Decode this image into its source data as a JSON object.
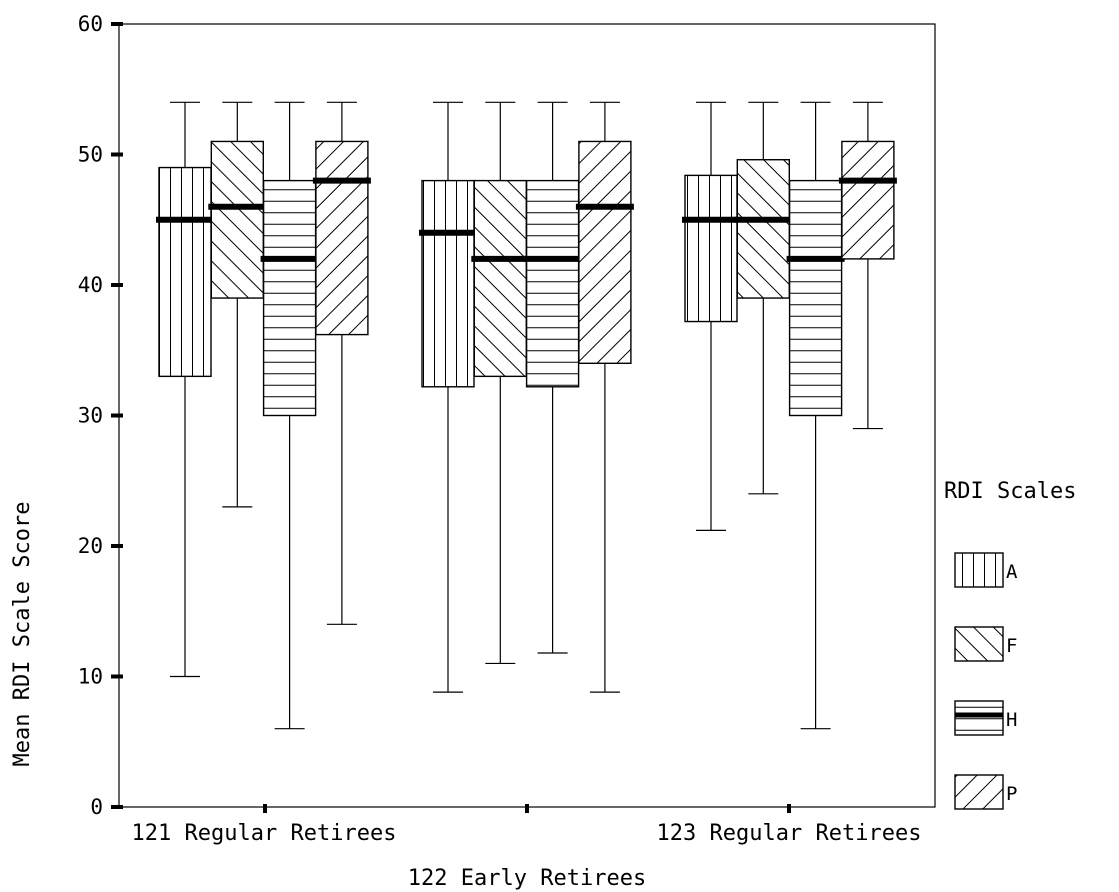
{
  "chart_data": {
    "type": "box",
    "ylabel": "Mean RDI Scale Score",
    "ylim": [
      0,
      60
    ],
    "yticks": [
      0,
      10,
      20,
      30,
      40,
      50,
      60
    ],
    "grid": false,
    "legend": {
      "title": "RDI Scales",
      "placement": "right"
    },
    "categories": [
      "121 Regular Retirees",
      "122 Early Retirees",
      "123 Regular Retirees"
    ],
    "category_label_rows": [
      "top",
      "bottom",
      "top"
    ],
    "series": [
      {
        "name": "A",
        "pattern": "vertical-lines",
        "boxes": [
          {
            "min": 10,
            "q1": 33,
            "median": 45,
            "q3": 49,
            "max": 54
          },
          {
            "min": 8.8,
            "q1": 32.2,
            "median": 44,
            "q3": 48,
            "max": 54
          },
          {
            "min": 21.2,
            "q1": 37.2,
            "median": 45,
            "q3": 48.4,
            "max": 54
          }
        ]
      },
      {
        "name": "F",
        "pattern": "back-diagonal-lines",
        "boxes": [
          {
            "min": 23,
            "q1": 39,
            "median": 46,
            "q3": 51,
            "max": 54
          },
          {
            "min": 11,
            "q1": 33,
            "median": 42,
            "q3": 48,
            "max": 54
          },
          {
            "min": 24,
            "q1": 39,
            "median": 45,
            "q3": 49.6,
            "max": 54
          }
        ]
      },
      {
        "name": "H",
        "pattern": "horizontal-lines",
        "boxes": [
          {
            "min": 6,
            "q1": 30,
            "median": 42,
            "q3": 48,
            "max": 54
          },
          {
            "min": 11.8,
            "q1": 32.2,
            "median": 42,
            "q3": 48,
            "max": 54
          },
          {
            "min": 6,
            "q1": 30,
            "median": 42,
            "q3": 48,
            "max": 54
          }
        ]
      },
      {
        "name": "P",
        "pattern": "forward-diagonal-lines",
        "boxes": [
          {
            "min": 14,
            "q1": 36.2,
            "median": 48,
            "q3": 51,
            "max": 54
          },
          {
            "min": 8.8,
            "q1": 34,
            "median": 46,
            "q3": 51,
            "max": 54
          },
          {
            "min": 29,
            "q1": 42,
            "median": 48,
            "q3": 51,
            "max": 54
          }
        ]
      }
    ]
  }
}
